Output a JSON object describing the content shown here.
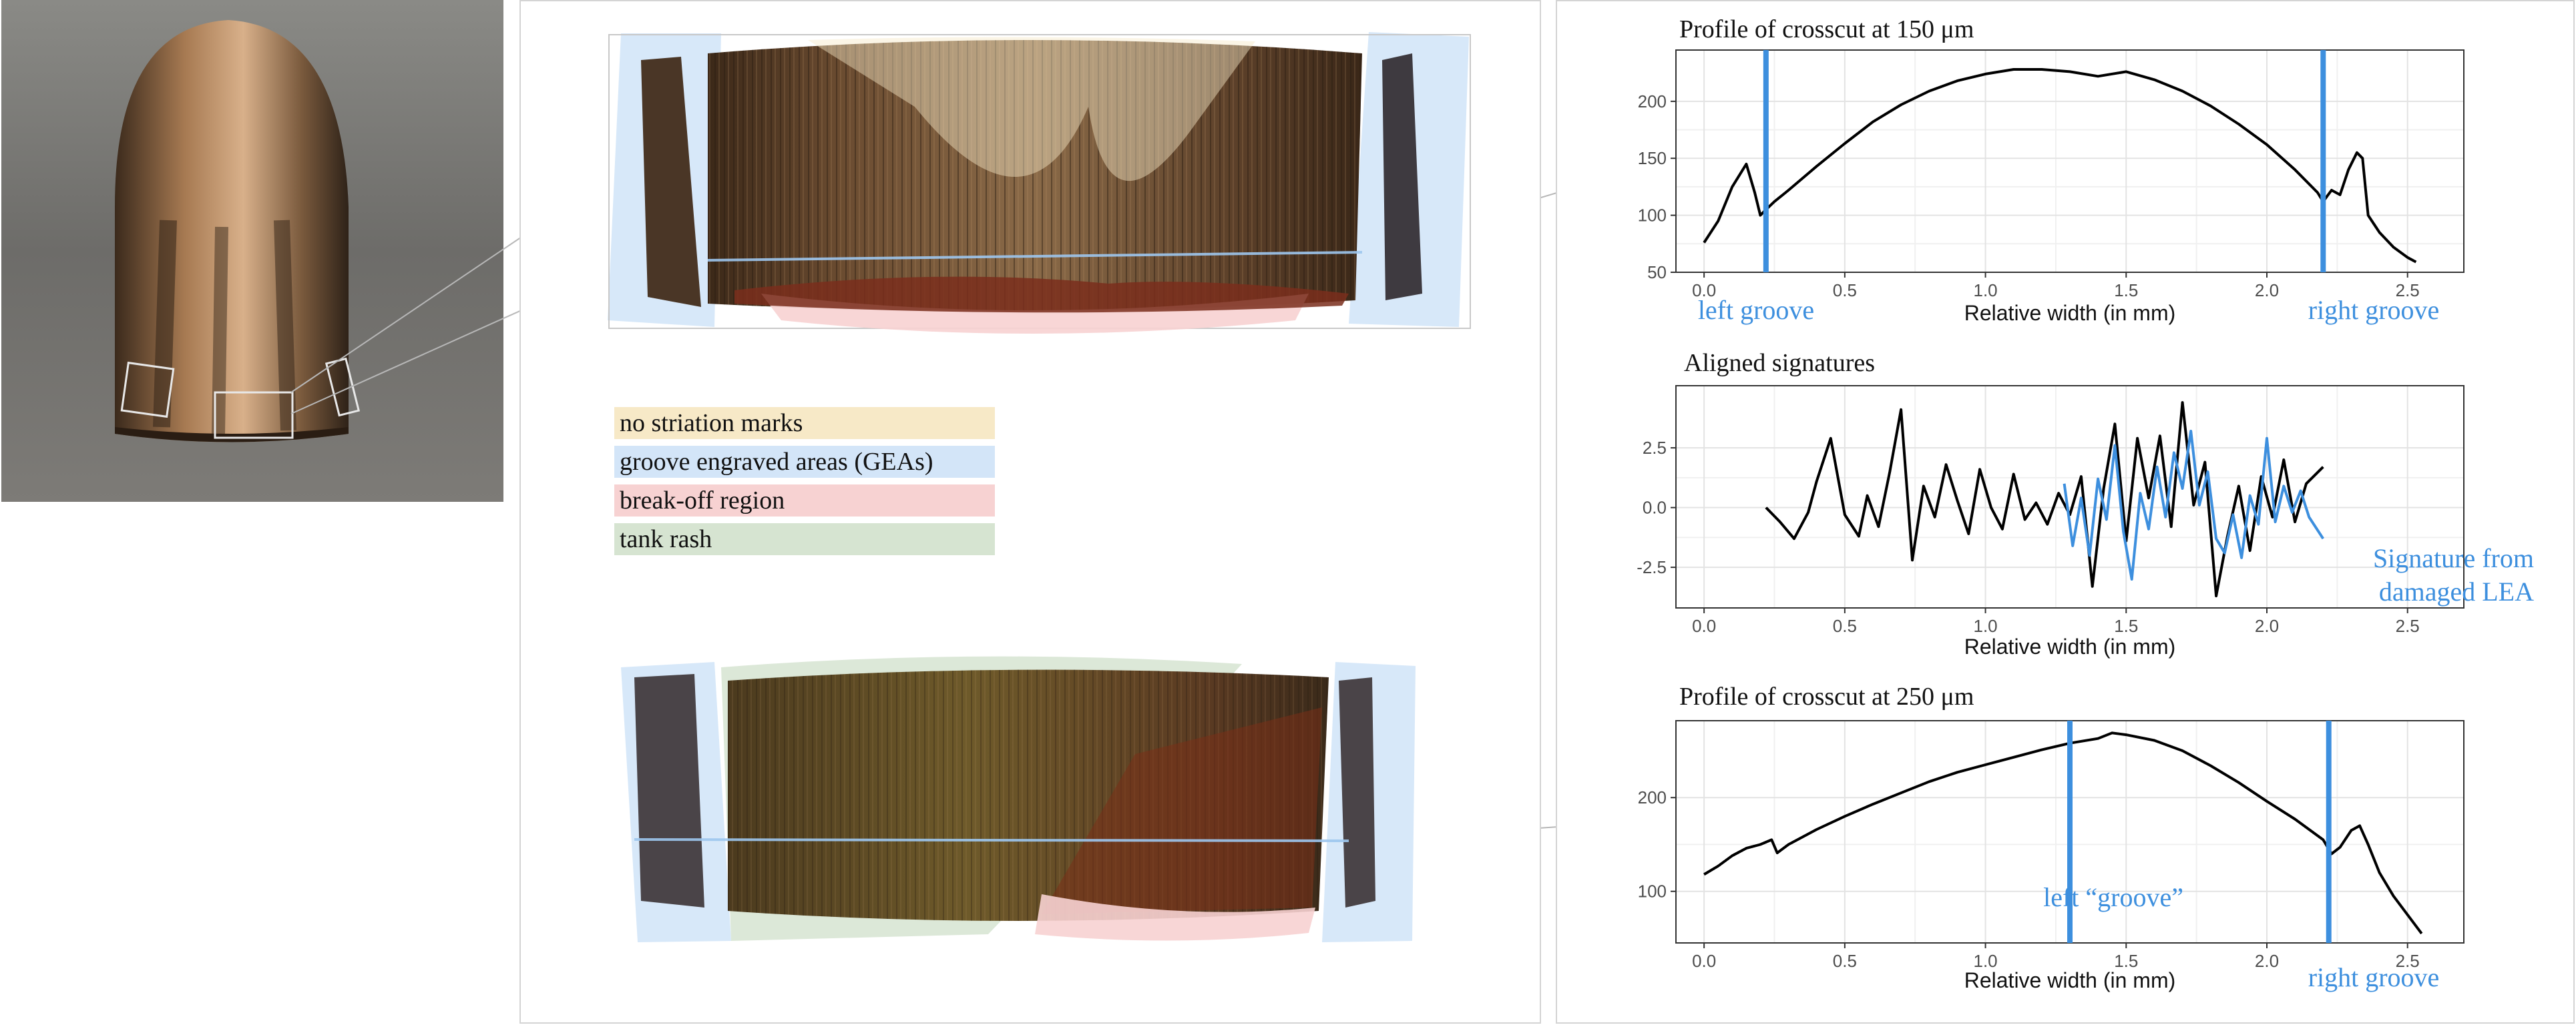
{
  "colors": {
    "accent_blue": "#3d8fde",
    "no_striation": "#f7e9c7",
    "groove": "#d3e5f8",
    "breakoff": "#f7d2d2",
    "tank_rash": "#d6e4d1",
    "profile_line": "#000000"
  },
  "legend": {
    "items": [
      {
        "label": "no striation marks",
        "color": "#f7e9c7"
      },
      {
        "label": "groove engraved areas (GEAs)",
        "color": "#d3e5f8"
      },
      {
        "label": "break-off region",
        "color": "#f7d2d2"
      },
      {
        "label": "tank rash",
        "color": "#d6e4d1"
      }
    ]
  },
  "chart_data": [
    {
      "type": "line",
      "title": "Profile of crosscut at 150 μm",
      "xlabel": "Relative width (in mm)",
      "ylabel": "",
      "xlim": [
        -0.1,
        2.7
      ],
      "ylim": [
        50,
        245
      ],
      "xticks": [
        0.0,
        0.5,
        1.0,
        1.5,
        2.0,
        2.5
      ],
      "xtick_labels": [
        "0.0",
        "0.5",
        "1.0",
        "1.5",
        "2.0",
        "2.5"
      ],
      "yticks": [
        50,
        100,
        150,
        200
      ],
      "ytick_labels": [
        "50",
        "100",
        "150",
        "200"
      ],
      "grid": true,
      "series": [
        {
          "x": [
            0.0,
            0.05,
            0.1,
            0.15,
            0.18,
            0.2,
            0.22,
            0.25,
            0.3,
            0.4,
            0.5,
            0.6,
            0.7,
            0.8,
            0.9,
            1.0,
            1.1,
            1.2,
            1.3,
            1.4,
            1.5,
            1.6,
            1.7,
            1.8,
            1.9,
            2.0,
            2.1,
            2.18,
            2.2,
            2.23,
            2.26,
            2.29,
            2.32,
            2.34,
            2.36,
            2.4,
            2.45,
            2.5,
            2.53
          ],
          "y": [
            76,
            95,
            125,
            145,
            120,
            100,
            105,
            112,
            122,
            143,
            163,
            182,
            197,
            209,
            218,
            224,
            228,
            228,
            226,
            222,
            226,
            219,
            209,
            196,
            180,
            162,
            140,
            120,
            112,
            122,
            118,
            140,
            155,
            150,
            100,
            85,
            72,
            63,
            59
          ]
        }
      ],
      "vlines": [
        0.22,
        2.2
      ],
      "annotations": [
        "left groove",
        "right groove"
      ]
    },
    {
      "type": "line",
      "title": "Aligned signatures",
      "xlabel": "Relative width (in mm)",
      "ylabel": "",
      "xlim": [
        -0.1,
        2.7
      ],
      "ylim": [
        -4.2,
        5.1
      ],
      "xticks": [
        0.0,
        0.5,
        1.0,
        1.5,
        2.0,
        2.5
      ],
      "xtick_labels": [
        "0.0",
        "0.5",
        "1.0",
        "1.5",
        "2.0",
        "2.5"
      ],
      "yticks": [
        -2.5,
        0.0,
        2.5
      ],
      "ytick_labels": [
        "-2.5",
        "0.0",
        "2.5"
      ],
      "grid": true,
      "series": [
        {
          "x": [
            0.22,
            0.27,
            0.32,
            0.37,
            0.4,
            0.45,
            0.5,
            0.55,
            0.58,
            0.62,
            0.66,
            0.7,
            0.74,
            0.78,
            0.82,
            0.86,
            0.9,
            0.94,
            0.98,
            1.02,
            1.06,
            1.1,
            1.14,
            1.18,
            1.22,
            1.26,
            1.3,
            1.34,
            1.38,
            1.42,
            1.46,
            1.5,
            1.54,
            1.58,
            1.62,
            1.66,
            1.7,
            1.74,
            1.78,
            1.82,
            1.86,
            1.9,
            1.94,
            1.98,
            2.02,
            2.06,
            2.1,
            2.14,
            2.2
          ],
          "y": [
            0.0,
            -0.6,
            -1.3,
            -0.2,
            1.1,
            2.9,
            -0.3,
            -1.2,
            0.5,
            -0.8,
            1.5,
            4.1,
            -2.2,
            0.9,
            -0.4,
            1.8,
            0.3,
            -1.1,
            1.6,
            0.0,
            -0.9,
            1.4,
            -0.5,
            0.2,
            -0.7,
            0.6,
            -0.3,
            1.3,
            -3.3,
            0.8,
            3.5,
            -1.4,
            2.9,
            0.4,
            3.0,
            -0.8,
            4.4,
            0.1,
            1.9,
            -3.7,
            -1.2,
            0.9,
            -1.8,
            1.3,
            -0.4,
            2.0,
            -0.6,
            1.0,
            1.7
          ]
        },
        {
          "x": [
            1.28,
            1.31,
            1.34,
            1.37,
            1.4,
            1.43,
            1.46,
            1.49,
            1.52,
            1.55,
            1.58,
            1.61,
            1.64,
            1.67,
            1.7,
            1.73,
            1.76,
            1.79,
            1.82,
            1.85,
            1.88,
            1.91,
            1.94,
            1.97,
            2.0,
            2.03,
            2.06,
            2.09,
            2.12,
            2.15,
            2.2
          ],
          "y": [
            1.0,
            -1.6,
            0.4,
            -2.0,
            1.2,
            -0.5,
            2.6,
            -1.0,
            -3.0,
            0.6,
            -0.9,
            1.7,
            -0.4,
            2.3,
            0.8,
            3.2,
            0.1,
            1.5,
            -1.3,
            -1.9,
            -0.3,
            -2.1,
            0.5,
            -0.7,
            2.9,
            -0.6,
            0.9,
            -0.2,
            0.7,
            -0.4,
            -1.3
          ]
        }
      ],
      "annotations": [
        "Signature from",
        "damaged LEA"
      ]
    },
    {
      "type": "line",
      "title": "Profile of crosscut at 250 μm",
      "xlabel": "Relative width (in mm)",
      "ylabel": "",
      "xlim": [
        -0.1,
        2.7
      ],
      "ylim": [
        45,
        282
      ],
      "xticks": [
        0.0,
        0.5,
        1.0,
        1.5,
        2.0,
        2.5
      ],
      "xtick_labels": [
        "0.0",
        "0.5",
        "1.0",
        "1.5",
        "2.0",
        "2.5"
      ],
      "yticks": [
        100,
        200
      ],
      "ytick_labels": [
        "100",
        "200"
      ],
      "grid": true,
      "series": [
        {
          "x": [
            0.0,
            0.05,
            0.1,
            0.15,
            0.2,
            0.24,
            0.26,
            0.3,
            0.4,
            0.5,
            0.6,
            0.7,
            0.8,
            0.9,
            1.0,
            1.1,
            1.2,
            1.3,
            1.4,
            1.45,
            1.5,
            1.6,
            1.7,
            1.8,
            1.9,
            2.0,
            2.1,
            2.2,
            2.23,
            2.26,
            2.3,
            2.33,
            2.36,
            2.4,
            2.45,
            2.5,
            2.55
          ],
          "y": [
            118,
            127,
            138,
            146,
            150,
            155,
            141,
            150,
            166,
            180,
            193,
            205,
            217,
            227,
            235,
            243,
            251,
            258,
            263,
            269,
            267,
            261,
            250,
            234,
            216,
            196,
            177,
            155,
            140,
            147,
            165,
            170,
            150,
            120,
            95,
            75,
            55
          ]
        }
      ],
      "vlines": [
        1.3,
        2.22
      ],
      "annotations": [
        "left “groove”",
        "right groove"
      ]
    }
  ]
}
